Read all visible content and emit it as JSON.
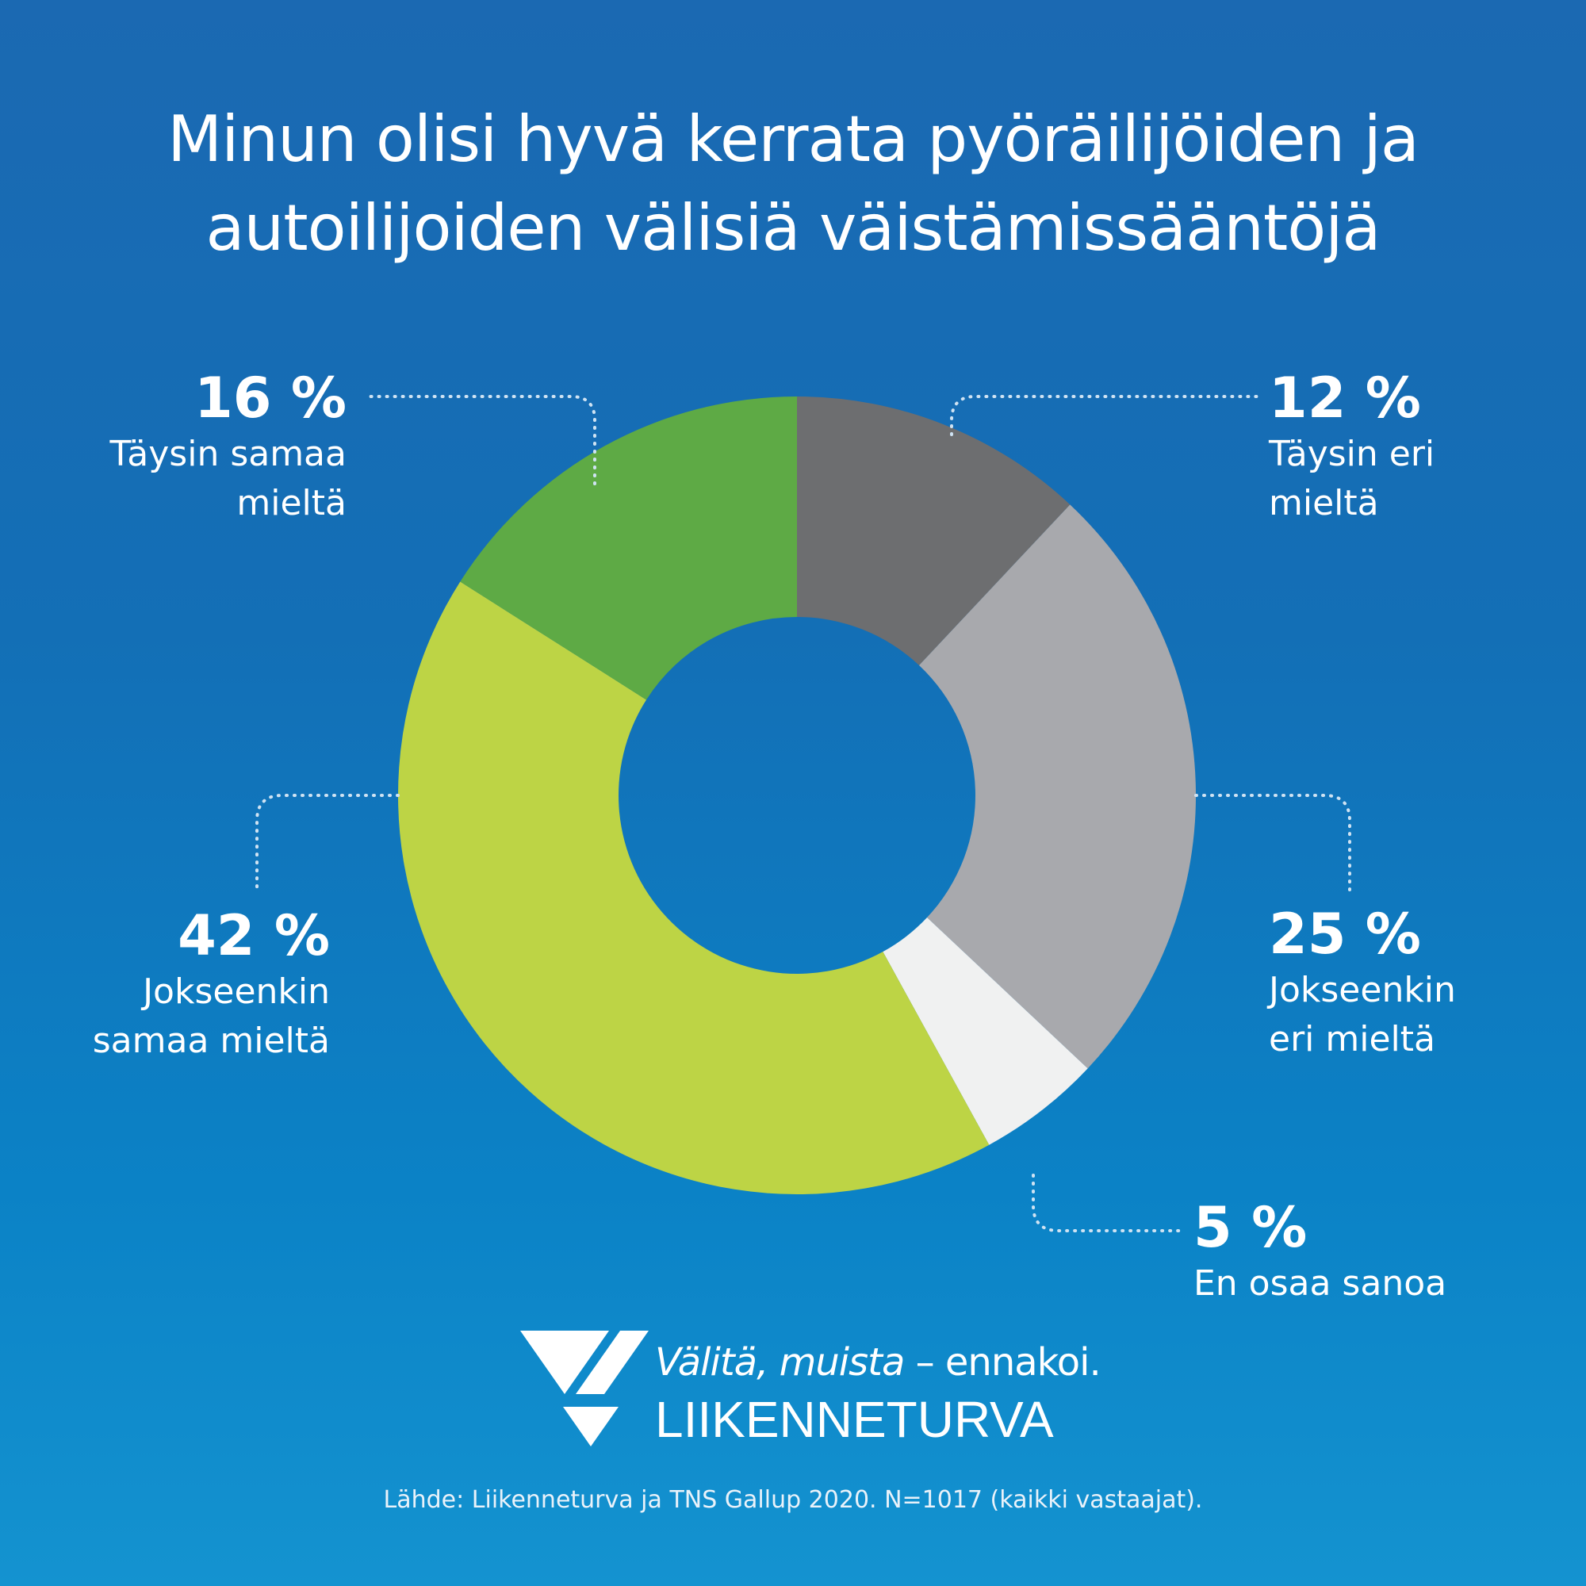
{
  "title_line1": "Minun olisi hyvä kerrata pyöräilijöiden ja",
  "title_line2": "autoilijoiden välisiä väistämissääntöjä",
  "chart_data": {
    "type": "pie",
    "donut": true,
    "categories": [
      "Täysin eri mieltä",
      "Jokseenkin eri mieltä",
      "En osaa sanoa",
      "Jokseenkin samaa mieltä",
      "Täysin samaa mieltä"
    ],
    "values": [
      12,
      25,
      5,
      42,
      16
    ],
    "value_labels": [
      "12 %",
      "25 %",
      "5 %",
      "42 %",
      "16 %"
    ],
    "label_lines": [
      [
        "Täysin eri",
        "mieltä"
      ],
      [
        "Jokseenkin",
        "eri mieltä"
      ],
      [
        "En osaa sanoa"
      ],
      [
        "Jokseenkin",
        "samaa mieltä"
      ],
      [
        "Täysin samaa",
        "mieltä"
      ]
    ],
    "colors": [
      "#6d6e70",
      "#a8a9ad",
      "#f0f1f1",
      "#bdd445",
      "#5eaa45"
    ]
  },
  "logo": {
    "tagline_italic": "Välitä, muista",
    "tagline_rest": " – ennakoi.",
    "brand": "LIIKENNETURVA"
  },
  "source": "Lähde: Liikenneturva ja TNS Gallup 2020. N=1017 (kaikki vastaajat)."
}
